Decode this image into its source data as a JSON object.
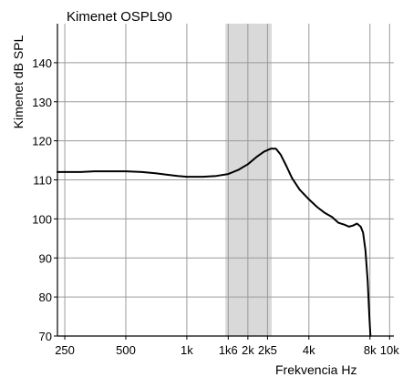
{
  "chart_data": {
    "type": "line",
    "title": "Kimenet OSPL90",
    "xlabel": "Frekvencia Hz",
    "ylabel": "Kimenet dB SPL",
    "x_scale": "log",
    "xlim": [
      230,
      10500
    ],
    "ylim": [
      70,
      150
    ],
    "x_ticks": [
      {
        "value": 250,
        "label": "250"
      },
      {
        "value": 500,
        "label": "500"
      },
      {
        "value": 1000,
        "label": "1k"
      },
      {
        "value": 1600,
        "label": "1k6"
      },
      {
        "value": 2000,
        "label": "2k"
      },
      {
        "value": 2500,
        "label": "2k5"
      },
      {
        "value": 4000,
        "label": "4k"
      },
      {
        "value": 8000,
        "label": "8k"
      },
      {
        "value": 10000,
        "label": "10k"
      }
    ],
    "y_ticks": [
      70,
      80,
      90,
      100,
      110,
      120,
      130,
      140
    ],
    "grid": true,
    "shaded_band": {
      "from": 1550,
      "to": 2620,
      "color": "#d9d9d9"
    },
    "series": [
      {
        "color": "#000000",
        "points": [
          [
            230,
            112
          ],
          [
            260,
            112
          ],
          [
            300,
            112
          ],
          [
            350,
            112.2
          ],
          [
            400,
            112.2
          ],
          [
            500,
            112.2
          ],
          [
            600,
            112
          ],
          [
            700,
            111.7
          ],
          [
            800,
            111.3
          ],
          [
            900,
            111
          ],
          [
            1000,
            110.8
          ],
          [
            1200,
            110.8
          ],
          [
            1400,
            111
          ],
          [
            1600,
            111.5
          ],
          [
            1800,
            112.6
          ],
          [
            2000,
            114
          ],
          [
            2200,
            115.8
          ],
          [
            2400,
            117.2
          ],
          [
            2600,
            118
          ],
          [
            2750,
            118
          ],
          [
            2900,
            116.5
          ],
          [
            3100,
            113.5
          ],
          [
            3300,
            110.5
          ],
          [
            3600,
            107.5
          ],
          [
            4000,
            105
          ],
          [
            4400,
            103
          ],
          [
            4800,
            101.5
          ],
          [
            5200,
            100.5
          ],
          [
            5600,
            99
          ],
          [
            6000,
            98.5
          ],
          [
            6300,
            98
          ],
          [
            6600,
            98.3
          ],
          [
            6900,
            98.8
          ],
          [
            7200,
            98
          ],
          [
            7400,
            96.5
          ],
          [
            7600,
            92
          ],
          [
            7800,
            84
          ],
          [
            7950,
            75
          ],
          [
            8050,
            70
          ]
        ]
      }
    ]
  }
}
